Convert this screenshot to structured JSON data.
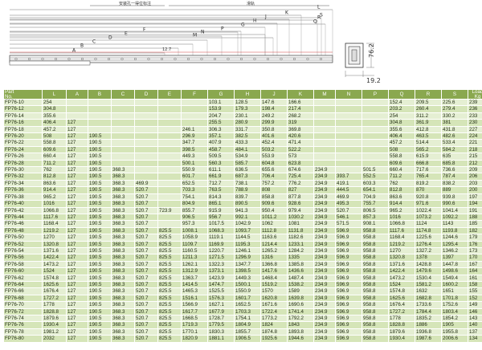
{
  "drawing": {
    "labels": [
      "L",
      "A",
      "B",
      "C",
      "D",
      "E",
      "F",
      "G",
      "H",
      "J",
      "K",
      "M",
      "N",
      "P",
      "Q",
      "R",
      "S"
    ],
    "note_left": "安装孔一得位标注",
    "note_right": "滑轨",
    "dim_hole": "12.7",
    "dim_height": "76.2",
    "dim_width": "19.2"
  },
  "table": {
    "headers": [
      {
        "top": "Part",
        "bottom": "No."
      },
      {
        "top": "L",
        "bottom": ""
      },
      {
        "top": "A",
        "bottom": ""
      },
      {
        "top": "B",
        "bottom": ""
      },
      {
        "top": "C",
        "bottom": ""
      },
      {
        "top": "D",
        "bottom": ""
      },
      {
        "top": "E",
        "bottom": ""
      },
      {
        "top": "F",
        "bottom": ""
      },
      {
        "top": "G",
        "bottom": ""
      },
      {
        "top": "H",
        "bottom": ""
      },
      {
        "top": "J",
        "bottom": ""
      },
      {
        "top": "K",
        "bottom": ""
      },
      {
        "top": "M",
        "bottom": ""
      },
      {
        "top": "N",
        "bottom": ""
      },
      {
        "top": "P",
        "bottom": ""
      },
      {
        "top": "Q",
        "bottom": ""
      },
      {
        "top": "R",
        "bottom": ""
      },
      {
        "top": "S",
        "bottom": ""
      },
      {
        "top": "Load",
        "bottom": "Kg"
      }
    ],
    "rows": [
      [
        "FP76-10",
        "254",
        "",
        "",
        "",
        "",
        "",
        "",
        "103.1",
        "128.5",
        "147.6",
        "166.6",
        "",
        "",
        "",
        "152.4",
        "209.5",
        "225.6",
        "239"
      ],
      [
        "FP76-12",
        "304.8",
        "",
        "",
        "",
        "",
        "",
        "",
        "153.9",
        "179.3",
        "198.4",
        "217.4",
        "",
        "",
        "",
        "203.2",
        "260.4",
        "279.4",
        "236"
      ],
      [
        "FP76-14",
        "355.6",
        "",
        "",
        "",
        "",
        "",
        "",
        "204.7",
        "230.1",
        "249.2",
        "268.2",
        "",
        "",
        "",
        "254",
        "311.2",
        "330.2",
        "233"
      ],
      [
        "FP76-16",
        "406.4",
        "127",
        "",
        "",
        "",
        "",
        "",
        "255.5",
        "280.9",
        "299.9",
        "319",
        "",
        "",
        "",
        "304.8",
        "361.9",
        "381",
        "230"
      ],
      [
        "FP76-18",
        "457.2",
        "127",
        "",
        "",
        "",
        "",
        "246.1",
        "306.3",
        "331.7",
        "350.8",
        "369.8",
        "",
        "",
        "",
        "355.6",
        "412.8",
        "431.8",
        "227"
      ],
      [
        "FP76-20",
        "508",
        "127",
        "190.5",
        "",
        "",
        "",
        "296.9",
        "357.1",
        "382.5",
        "401.6",
        "420.6",
        "",
        "",
        "",
        "406.4",
        "463.5",
        "482.6",
        "224"
      ],
      [
        "FP76-22",
        "558.8",
        "127",
        "190.5",
        "",
        "",
        "",
        "347.7",
        "407.9",
        "433.3",
        "452.4",
        "471.4",
        "",
        "",
        "",
        "457.2",
        "514.4",
        "533.4",
        "221"
      ],
      [
        "FP76-24",
        "609.6",
        "127",
        "190.5",
        "",
        "",
        "",
        "398.5",
        "458.7",
        "484.1",
        "503.2",
        "522.2",
        "",
        "",
        "",
        "508",
        "565.2",
        "584.2",
        "218"
      ],
      [
        "FP76-26",
        "660.4",
        "127",
        "190.5",
        "",
        "",
        "",
        "449.3",
        "509.5",
        "534.9",
        "553.9",
        "573",
        "",
        "",
        "",
        "558.8",
        "615.9",
        "635",
        "215"
      ],
      [
        "FP76-28",
        "711.2",
        "127",
        "190.5",
        "",
        "",
        "",
        "500.1",
        "560.3",
        "585.7",
        "604.8",
        "623.8",
        "",
        "",
        "",
        "609.6",
        "666.8",
        "685.8",
        "212"
      ],
      [
        "FP76-30",
        "762",
        "127",
        "190.5",
        "368.3",
        "",
        "",
        "550.9",
        "611.1",
        "636.5",
        "655.6",
        "674.6",
        "234.9",
        "",
        "501.5",
        "660.4",
        "717.6",
        "736.6",
        "209"
      ],
      [
        "FP76-32",
        "812.8",
        "127",
        "190.5",
        "368.3",
        "",
        "",
        "601.7",
        "661.9",
        "687.3",
        "706.4",
        "725.4",
        "234.9",
        "393.7",
        "552.5",
        "711.2",
        "765.4",
        "787.4",
        "206"
      ],
      [
        "FP76-34",
        "863.6",
        "127",
        "190.5",
        "368.3",
        "469.9",
        "",
        "652.5",
        "712.7",
        "738.1",
        "757.2",
        "776.2",
        "234.9",
        "419.1",
        "603.3",
        "762",
        "819.2",
        "838.2",
        "203"
      ],
      [
        "FP76-36",
        "914.4",
        "127",
        "190.5",
        "368.3",
        "520.7",
        "",
        "703.3",
        "763.5",
        "788.9",
        "808",
        "827",
        "234.9",
        "444.5",
        "654.1",
        "812.8",
        "870",
        "889",
        "200"
      ],
      [
        "FP76-38",
        "965.2",
        "127",
        "190.5",
        "368.3",
        "520.7",
        "",
        "754.1",
        "814.3",
        "839.7",
        "858.8",
        "877.8",
        "234.9",
        "469.9",
        "704.9",
        "863.6",
        "920.8",
        "939.8",
        "197"
      ],
      [
        "FP76-40",
        "1016",
        "127",
        "190.5",
        "368.3",
        "520.7",
        "",
        "804.9",
        "865.1",
        "890.5",
        "909.6",
        "928.6",
        "234.9",
        "495.3",
        "755.7",
        "914.4",
        "971.6",
        "990.6",
        "194"
      ],
      [
        "FP76-42",
        "1066.8",
        "127",
        "190.5",
        "368.3",
        "520.7",
        "723.9",
        "855.7",
        "915.9",
        "941.3",
        "950.4",
        "979.4",
        "234.9",
        "520.7",
        "806.5",
        "965.2",
        "1022.4",
        "1041.4",
        "191"
      ],
      [
        "FP76-44",
        "1117.6",
        "127",
        "190.5",
        "368.3",
        "520.7",
        "",
        "906.5",
        "956.7",
        "992.1",
        "1011.2",
        "1030.2",
        "234.9",
        "546.1",
        "857.3",
        "1016",
        "1073.2",
        "1092.2",
        "188"
      ],
      [
        "FP76-46",
        "1168.4",
        "127",
        "190.5",
        "368.3",
        "520.7",
        "",
        "957.3",
        "1017.5",
        "1042.9",
        "1062",
        "1081",
        "234.9",
        "571.5",
        "908.1",
        "1066.8",
        "1124",
        "1143",
        "185"
      ],
      [
        "FP76-48",
        "1219.2",
        "127",
        "190.5",
        "368.3",
        "520.7",
        "825.5",
        "1008.1",
        "1068.3",
        "1093.7",
        "1112.8",
        "1131.8",
        "234.9",
        "596.9",
        "958.8",
        "1117.6",
        "1174.8",
        "1193.8",
        "182"
      ],
      [
        "FP76-50",
        "1270",
        "127",
        "190.5",
        "368.3",
        "520.7",
        "825.5",
        "1058.9",
        "1119.1",
        "1144.5",
        "1163.6",
        "1182.6",
        "234.9",
        "596.9",
        "958.8",
        "1168.4",
        "1225.6",
        "1244.6",
        "179"
      ],
      [
        "FP76-52",
        "1320.8",
        "127",
        "190.5",
        "368.3",
        "520.7",
        "825.5",
        "1109.7",
        "1169.9",
        "1195.3",
        "1214.4",
        "1233.1",
        "234.9",
        "596.9",
        "958.8",
        "1219.2",
        "1276.4",
        "1295.4",
        "176"
      ],
      [
        "FP76-54",
        "1371.6",
        "127",
        "190.5",
        "368.3",
        "520.7",
        "825.5",
        "1160.5",
        "1220.7",
        "1246.1",
        "1265.2",
        "1284.2",
        "234.9",
        "596.9",
        "958.8",
        "1270",
        "1327.2",
        "1346.2",
        "173"
      ],
      [
        "FP76-56",
        "1422.4",
        "127",
        "190.5",
        "368.3",
        "520.7",
        "825.5",
        "1211.3",
        "1271.5",
        "1296.9",
        "1316",
        "1335",
        "234.9",
        "596.9",
        "958.8",
        "1320.8",
        "1378",
        "1397",
        "170"
      ],
      [
        "FP76-58",
        "1473.2",
        "127",
        "190.5",
        "368.3",
        "520.7",
        "825.5",
        "1262.1",
        "1322.3",
        "1347.7",
        "1366.8",
        "1385.8",
        "234.9",
        "596.9",
        "958.8",
        "1371.6",
        "1428.8",
        "1447.8",
        "167"
      ],
      [
        "FP76-60",
        "1524",
        "127",
        "190.5",
        "368.3",
        "520.7",
        "825.5",
        "1312.9",
        "1373.1",
        "1398.5",
        "1417.6",
        "1436.6",
        "234.9",
        "596.9",
        "958.8",
        "1422.4",
        "1479.6",
        "1498.6",
        "164"
      ],
      [
        "FP76-62",
        "1574.8",
        "127",
        "190.5",
        "368.3",
        "520.7",
        "825.5",
        "1363.7",
        "1423.9",
        "1449.3",
        "1468.4",
        "1487.4",
        "234.9",
        "596.9",
        "958.8",
        "1473.2",
        "1530.4",
        "1549.4",
        "161"
      ],
      [
        "FP76-64",
        "1625.6",
        "127",
        "190.5",
        "368.3",
        "520.7",
        "825.5",
        "1414.5",
        "1474.7",
        "1500.1",
        "1519.2",
        "1538.2",
        "234.9",
        "596.9",
        "958.8",
        "1524",
        "1581.2",
        "1600.2",
        "158"
      ],
      [
        "FP76-66",
        "1676.4",
        "127",
        "190.5",
        "368.3",
        "520.7",
        "825.5",
        "1465.3",
        "1525.5",
        "1550.9",
        "1570",
        "1589",
        "234.9",
        "596.9",
        "958.8",
        "1574.8",
        "1632",
        "1651",
        "155"
      ],
      [
        "FP76-68",
        "1727.2",
        "127",
        "190.5",
        "368.3",
        "520.7",
        "825.5",
        "1516.1",
        "1576.3",
        "1601.7",
        "1620.8",
        "1639.8",
        "234.9",
        "596.9",
        "958.8",
        "1625.6",
        "1682.8",
        "1701.8",
        "152"
      ],
      [
        "FP76-70",
        "1778",
        "127",
        "190.5",
        "368.3",
        "520.7",
        "825.5",
        "1566.9",
        "1627.1",
        "1652.5",
        "1671.6",
        "1690.6",
        "234.9",
        "596.9",
        "958.8",
        "1676.4",
        "1733.6",
        "1752.6",
        "149"
      ],
      [
        "FP76-72",
        "1828.8",
        "127",
        "190.5",
        "368.3",
        "520.7",
        "825.5",
        "1617.7",
        "1677.9",
        "1703.3",
        "1722.4",
        "1741.4",
        "234.9",
        "596.9",
        "958.8",
        "1727.2",
        "1784.4",
        "1803.4",
        "146"
      ],
      [
        "FP76-74",
        "1879.6",
        "127",
        "190.5",
        "368.3",
        "520.7",
        "825.5",
        "1668.5",
        "1728.7",
        "1754.1",
        "1773.2",
        "1792.2",
        "234.9",
        "596.9",
        "958.8",
        "1778",
        "1835.2",
        "1854.2",
        "143"
      ],
      [
        "FP76-76",
        "1930.4",
        "127",
        "190.5",
        "368.3",
        "520.7",
        "825.5",
        "1719.3",
        "1779.5",
        "1804.9",
        "1824",
        "1843",
        "234.9",
        "596.9",
        "958.8",
        "1828.8",
        "1886",
        "1905",
        "140"
      ],
      [
        "FP76-78",
        "1981.2",
        "127",
        "190.5",
        "368.3",
        "520.7",
        "825.5",
        "1770.1",
        "1830.3",
        "1855.7",
        "1874.8",
        "1893.8",
        "234.9",
        "596.9",
        "958.8",
        "1879.6",
        "1936.8",
        "1955.8",
        "137"
      ],
      [
        "FP76-80",
        "2032",
        "127",
        "190.5",
        "368.3",
        "520.7",
        "825.5",
        "1820.9",
        "1881.1",
        "1906.5",
        "1925.6",
        "1944.6",
        "234.9",
        "596.9",
        "958.8",
        "1930.4",
        "1987.6",
        "2006.6",
        "134"
      ]
    ]
  }
}
